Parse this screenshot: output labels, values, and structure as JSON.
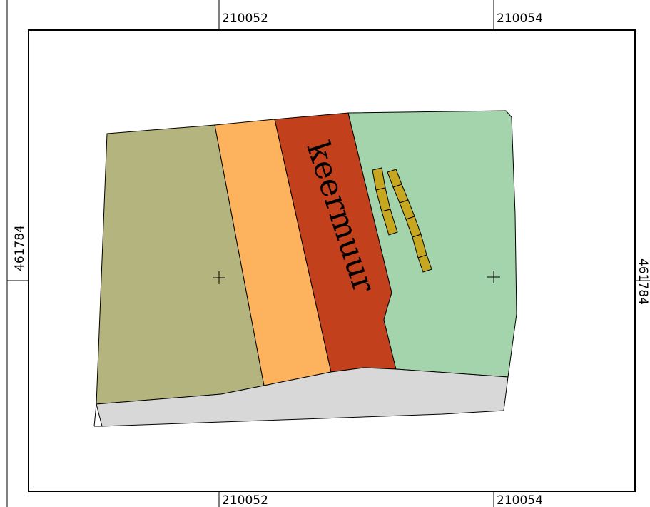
{
  "map": {
    "coordinates": {
      "x_top_left": "210052",
      "x_top_right": "210054",
      "x_bottom_left": "210052",
      "x_bottom_right": "210054",
      "y_left": "461784",
      "y_right": "461784"
    },
    "label": "keermuur",
    "colors": {
      "parcel_left": "#b4b47e",
      "parcel_strip": "#fdb35d",
      "wall": "#c2401b",
      "parcel_right": "#a3d4ab",
      "road": "#d8d8d8",
      "blocks": "#c8a720",
      "frame": "#000000"
    }
  }
}
